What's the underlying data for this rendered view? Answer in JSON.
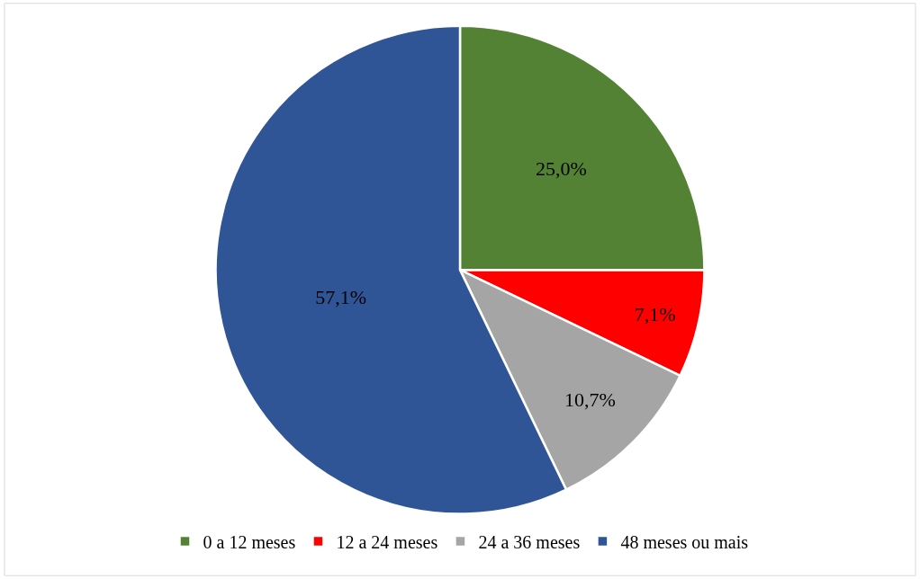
{
  "chart_data": {
    "type": "pie",
    "categories": [
      "0 a 12 meses",
      "12 a 24 meses",
      "24 a 36 meses",
      "48 meses ou mais"
    ],
    "values": [
      25.0,
      7.1,
      10.7,
      57.1
    ],
    "colors": [
      "#548235",
      "#ff0000",
      "#a5a5a5",
      "#2f5597"
    ],
    "value_labels": [
      "25,0%",
      "7,1%",
      "10,7%",
      "57,1%"
    ],
    "legend": "bottom"
  }
}
